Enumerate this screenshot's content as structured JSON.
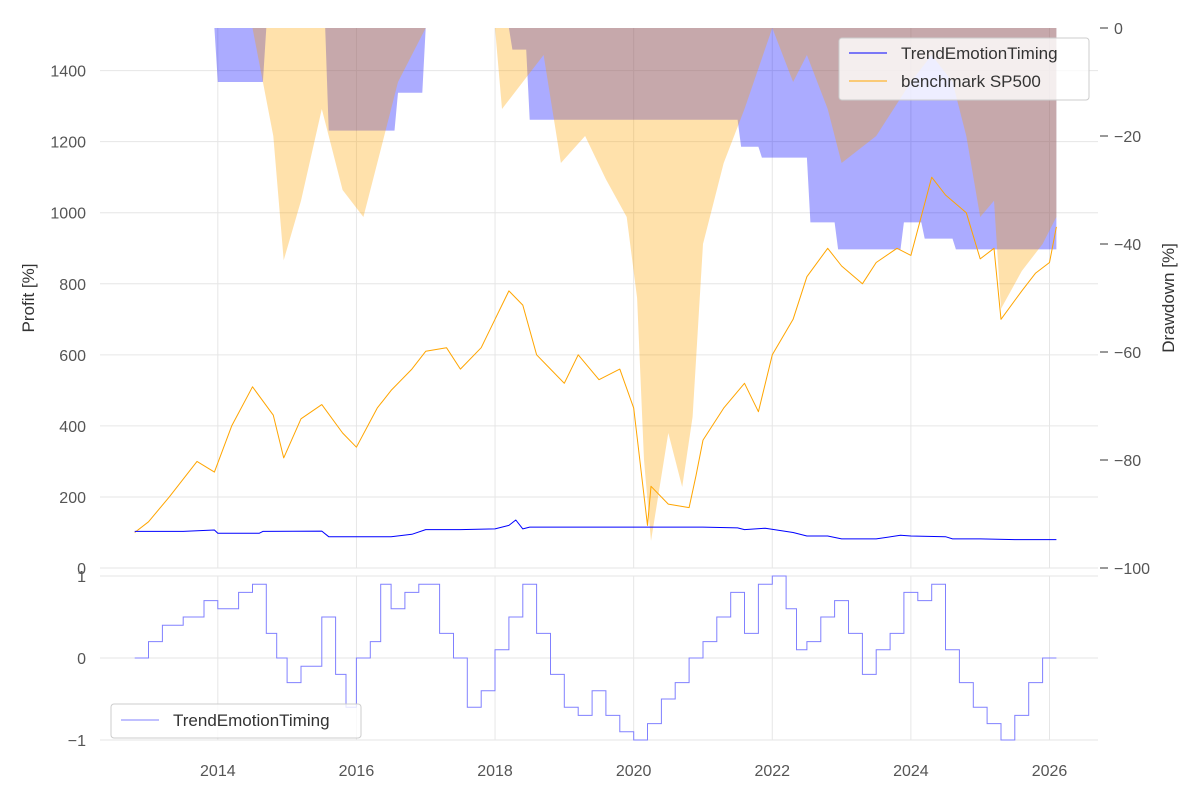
{
  "chart_data": [
    {
      "type": "line",
      "panel": "main",
      "ylabel": "Profit [%]",
      "ylabel_right": "Drawdown [%]",
      "x_ticks": [
        "2014",
        "2016",
        "2018",
        "2020",
        "2022",
        "2024",
        "2026"
      ],
      "xlim": [
        2012.3,
        2026.7
      ],
      "ylim": [
        0,
        1520
      ],
      "y_ticks": [
        "0",
        "200",
        "400",
        "600",
        "800",
        "1000",
        "1200",
        "1400"
      ],
      "y2lim": [
        -100,
        0
      ],
      "y2_ticks": [
        "0",
        "−20",
        "−40",
        "−60",
        "−80",
        "−100"
      ],
      "grid": true,
      "legend_position": "top-right",
      "series": [
        {
          "name": "TrendEmotionTiming",
          "color": "#0000ff",
          "x": [
            2012.8,
            2013.5,
            2013.95,
            2014.0,
            2014.6,
            2014.65,
            2015.5,
            2015.6,
            2016.5,
            2016.8,
            2017.0,
            2017.5,
            2018.0,
            2018.2,
            2018.3,
            2018.4,
            2018.5,
            2019.0,
            2020.0,
            2021.0,
            2021.5,
            2021.6,
            2021.9,
            2022.3,
            2022.5,
            2022.8,
            2023.0,
            2023.5,
            2023.85,
            2024.0,
            2024.5,
            2024.6,
            2025.0,
            2025.5,
            2026.1
          ],
          "values": [
            103,
            103,
            107,
            98,
            98,
            103,
            104,
            88,
            88,
            95,
            108,
            108,
            110,
            120,
            135,
            110,
            115,
            115,
            115,
            115,
            113,
            108,
            112,
            100,
            90,
            90,
            82,
            82,
            92,
            90,
            88,
            82,
            82,
            80,
            80
          ]
        },
        {
          "name": "benchmark SP500",
          "color": "#ffa500",
          "x": [
            2012.8,
            2013.0,
            2013.3,
            2013.7,
            2013.95,
            2014.2,
            2014.5,
            2014.8,
            2014.95,
            2015.2,
            2015.5,
            2015.8,
            2016.0,
            2016.3,
            2016.5,
            2016.8,
            2017.0,
            2017.3,
            2017.5,
            2017.8,
            2018.0,
            2018.2,
            2018.4,
            2018.6,
            2018.8,
            2019.0,
            2019.2,
            2019.5,
            2019.8,
            2020.0,
            2020.2,
            2020.25,
            2020.5,
            2020.8,
            2020.9,
            2021.0,
            2021.3,
            2021.6,
            2021.8,
            2022.0,
            2022.3,
            2022.5,
            2022.8,
            2023.0,
            2023.3,
            2023.5,
            2023.8,
            2024.0,
            2024.3,
            2024.5,
            2024.8,
            2025.0,
            2025.2,
            2025.3,
            2025.6,
            2025.8,
            2026.0,
            2026.1
          ],
          "values": [
            100,
            130,
            200,
            300,
            270,
            400,
            510,
            430,
            310,
            420,
            460,
            380,
            340,
            450,
            500,
            560,
            610,
            620,
            560,
            620,
            700,
            780,
            740,
            600,
            560,
            520,
            600,
            530,
            560,
            450,
            120,
            230,
            180,
            170,
            260,
            360,
            450,
            520,
            440,
            600,
            700,
            820,
            900,
            850,
            800,
            860,
            900,
            880,
            1100,
            1050,
            1000,
            870,
            900,
            700,
            780,
            830,
            860,
            960
          ]
        }
      ],
      "drawdown_series": [
        {
          "name": "TrendEmotionTiming drawdown",
          "color": "#0000ff",
          "x": [
            2012.8,
            2013.95,
            2014.0,
            2014.65,
            2014.7,
            2015.55,
            2015.6,
            2016.55,
            2016.6,
            2016.95,
            2017.0,
            2018.2,
            2018.25,
            2018.45,
            2018.5,
            2021.5,
            2021.55,
            2021.8,
            2021.85,
            2022.5,
            2022.55,
            2022.9,
            2022.95,
            2023.85,
            2023.9,
            2024.15,
            2024.2,
            2024.6,
            2024.65,
            2026.1
          ],
          "values": [
            0,
            0,
            -10,
            -10,
            0,
            0,
            -19,
            -19,
            -12,
            -12,
            0,
            0,
            -4,
            -4,
            -17,
            -17,
            -22,
            -22,
            -24,
            -24,
            -36,
            -36,
            -41,
            -41,
            -36,
            -36,
            -39,
            -39,
            -41,
            -41
          ]
        },
        {
          "name": "benchmark SP500 drawdown",
          "color": "#ffa500",
          "x": [
            2012.8,
            2013.9,
            2014.5,
            2014.8,
            2014.95,
            2015.2,
            2015.5,
            2015.8,
            2016.1,
            2016.4,
            2016.6,
            2017.0,
            2018.0,
            2018.1,
            2018.4,
            2018.7,
            2018.95,
            2019.3,
            2019.6,
            2019.9,
            2020.05,
            2020.15,
            2020.25,
            2020.5,
            2020.7,
            2020.85,
            2021.0,
            2021.3,
            2021.6,
            2022.0,
            2022.3,
            2022.5,
            2022.8,
            2023.0,
            2023.5,
            2024.0,
            2024.3,
            2024.6,
            2024.8,
            2025.0,
            2025.2,
            2025.3,
            2025.6,
            2025.9,
            2026.1
          ],
          "values": [
            0,
            0,
            0,
            -20,
            -43,
            -32,
            -15,
            -30,
            -35,
            -20,
            -10,
            0,
            0,
            -15,
            -10,
            -5,
            -25,
            -20,
            -28,
            -35,
            -50,
            -80,
            -95,
            -75,
            -85,
            -72,
            -40,
            -25,
            -15,
            0,
            -10,
            -5,
            -15,
            -25,
            -20,
            -10,
            -5,
            -10,
            -20,
            -35,
            -32,
            -52,
            -45,
            -40,
            -35
          ]
        }
      ]
    },
    {
      "type": "line",
      "panel": "signal",
      "x_ticks": [
        "2014",
        "2016",
        "2018",
        "2020",
        "2022",
        "2024",
        "2026"
      ],
      "xlim": [
        2012.3,
        2026.7
      ],
      "ylim": [
        -1,
        1
      ],
      "y_ticks": [
        "−1",
        "0",
        "1"
      ],
      "grid": true,
      "legend_position": "bottom-left",
      "series": [
        {
          "name": "TrendEmotionTiming",
          "color": "#8080ff",
          "x": [
            2012.8,
            2013.0,
            2013.2,
            2013.5,
            2013.8,
            2014.0,
            2014.3,
            2014.5,
            2014.7,
            2014.85,
            2015.0,
            2015.2,
            2015.5,
            2015.7,
            2015.85,
            2016.0,
            2016.2,
            2016.35,
            2016.5,
            2016.7,
            2016.9,
            2017.2,
            2017.4,
            2017.6,
            2017.8,
            2018.0,
            2018.2,
            2018.4,
            2018.6,
            2018.8,
            2019.0,
            2019.2,
            2019.4,
            2019.6,
            2019.8,
            2020.0,
            2020.2,
            2020.4,
            2020.6,
            2020.8,
            2021.0,
            2021.2,
            2021.4,
            2021.6,
            2021.8,
            2022.0,
            2022.2,
            2022.35,
            2022.5,
            2022.7,
            2022.9,
            2023.1,
            2023.3,
            2023.5,
            2023.7,
            2023.9,
            2024.1,
            2024.3,
            2024.5,
            2024.7,
            2024.9,
            2025.1,
            2025.3,
            2025.5,
            2025.7,
            2025.9,
            2026.1
          ],
          "values": [
            0,
            0.2,
            0.4,
            0.5,
            0.7,
            0.6,
            0.8,
            0.9,
            0.3,
            0.0,
            -0.3,
            -0.1,
            0.5,
            -0.2,
            -0.6,
            0.0,
            0.2,
            0.9,
            0.6,
            0.8,
            0.9,
            0.3,
            0.0,
            -0.6,
            -0.4,
            0.1,
            0.5,
            0.9,
            0.3,
            -0.2,
            -0.6,
            -0.7,
            -0.4,
            -0.7,
            -0.9,
            -1.0,
            -0.8,
            -0.5,
            -0.3,
            0.0,
            0.2,
            0.5,
            0.8,
            0.3,
            0.9,
            1.0,
            0.6,
            0.1,
            0.2,
            0.5,
            0.7,
            0.3,
            -0.2,
            0.1,
            0.3,
            0.8,
            0.7,
            0.9,
            0.1,
            -0.3,
            -0.6,
            -0.8,
            -1.0,
            -0.7,
            -0.3,
            0.0,
            0.0
          ]
        }
      ]
    }
  ]
}
